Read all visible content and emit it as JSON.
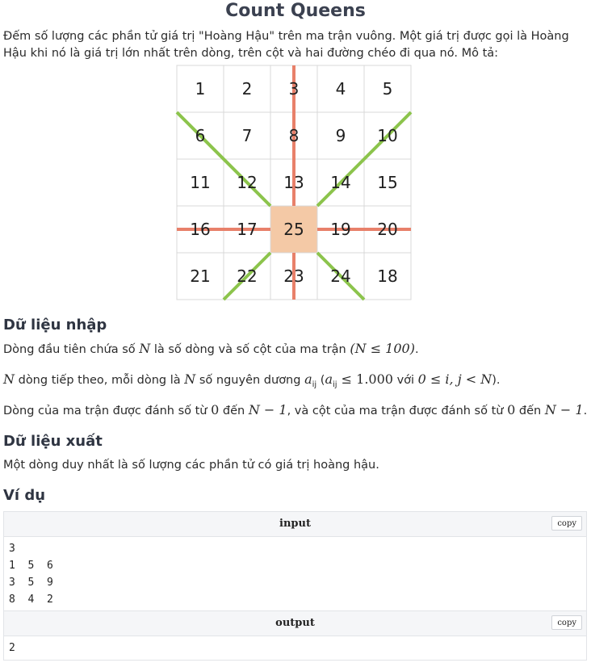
{
  "title": "Count Queens",
  "description": "Đếm số lượng các phần tử giá trị \"Hoàng Hậu\" trên ma trận vuông. Một giá trị được gọi là Hoàng Hậu khi nó là giá trị lớn nhất trên dòng, trên cột và hai đường chéo đi qua nó. Mô tả:",
  "figure": {
    "grid": [
      [
        "1",
        "2",
        "3",
        "4",
        "5"
      ],
      [
        "6",
        "7",
        "8",
        "9",
        "10"
      ],
      [
        "11",
        "12",
        "13",
        "14",
        "15"
      ],
      [
        "16",
        "17",
        "25",
        "19",
        "20"
      ],
      [
        "21",
        "22",
        "23",
        "24",
        "18"
      ]
    ],
    "queen_row": 3,
    "queen_col": 2,
    "colors": {
      "line_straight": "#e8806a",
      "line_diagonal": "#8cc44c",
      "queen_cell": "#f4c9a6",
      "grid": "#d8d8d8"
    }
  },
  "input_section": {
    "heading": "Dữ liệu nhập",
    "line1": {
      "before": "Dòng đầu tiên chứa số ",
      "var_n": "N",
      "middle": " là số dòng và số cột của ma trận ",
      "constraint": "(N ≤ 100)",
      "after": "."
    },
    "line2": {
      "var_n": "N",
      "part1": " dòng tiếp theo, mỗi dòng là ",
      "var_n2": "N",
      "part2": " số nguyên dương ",
      "var_a": "a",
      "sub": "ij",
      "open": " (",
      "var_a2": "a",
      "sub2": "ij",
      "math_bound": " ≤ 1.000",
      "word_with": " với ",
      "range": "0 ≤ i, j < N",
      "close": ")."
    },
    "line3": {
      "part1": "Dòng của ma trận được đánh số từ ",
      "zero1": "0",
      "part2": " đến ",
      "n_minus_1": "N − 1",
      "part3": ", và cột của ma trận được đánh số từ ",
      "zero2": "0",
      "part4": " đến ",
      "n_minus_1b": "N − 1",
      "end": "."
    }
  },
  "output_section": {
    "heading": "Dữ liệu xuất",
    "text": "Một dòng duy nhất là số lượng các phần tử có giá trị hoàng hậu."
  },
  "example": {
    "heading": "Ví dụ",
    "input_label": "input",
    "output_label": "output",
    "copy_label": "copy",
    "input_lines": [
      "3",
      "1 5 6",
      "3 5 9",
      "8 4 2"
    ],
    "output_lines": [
      "2"
    ]
  }
}
